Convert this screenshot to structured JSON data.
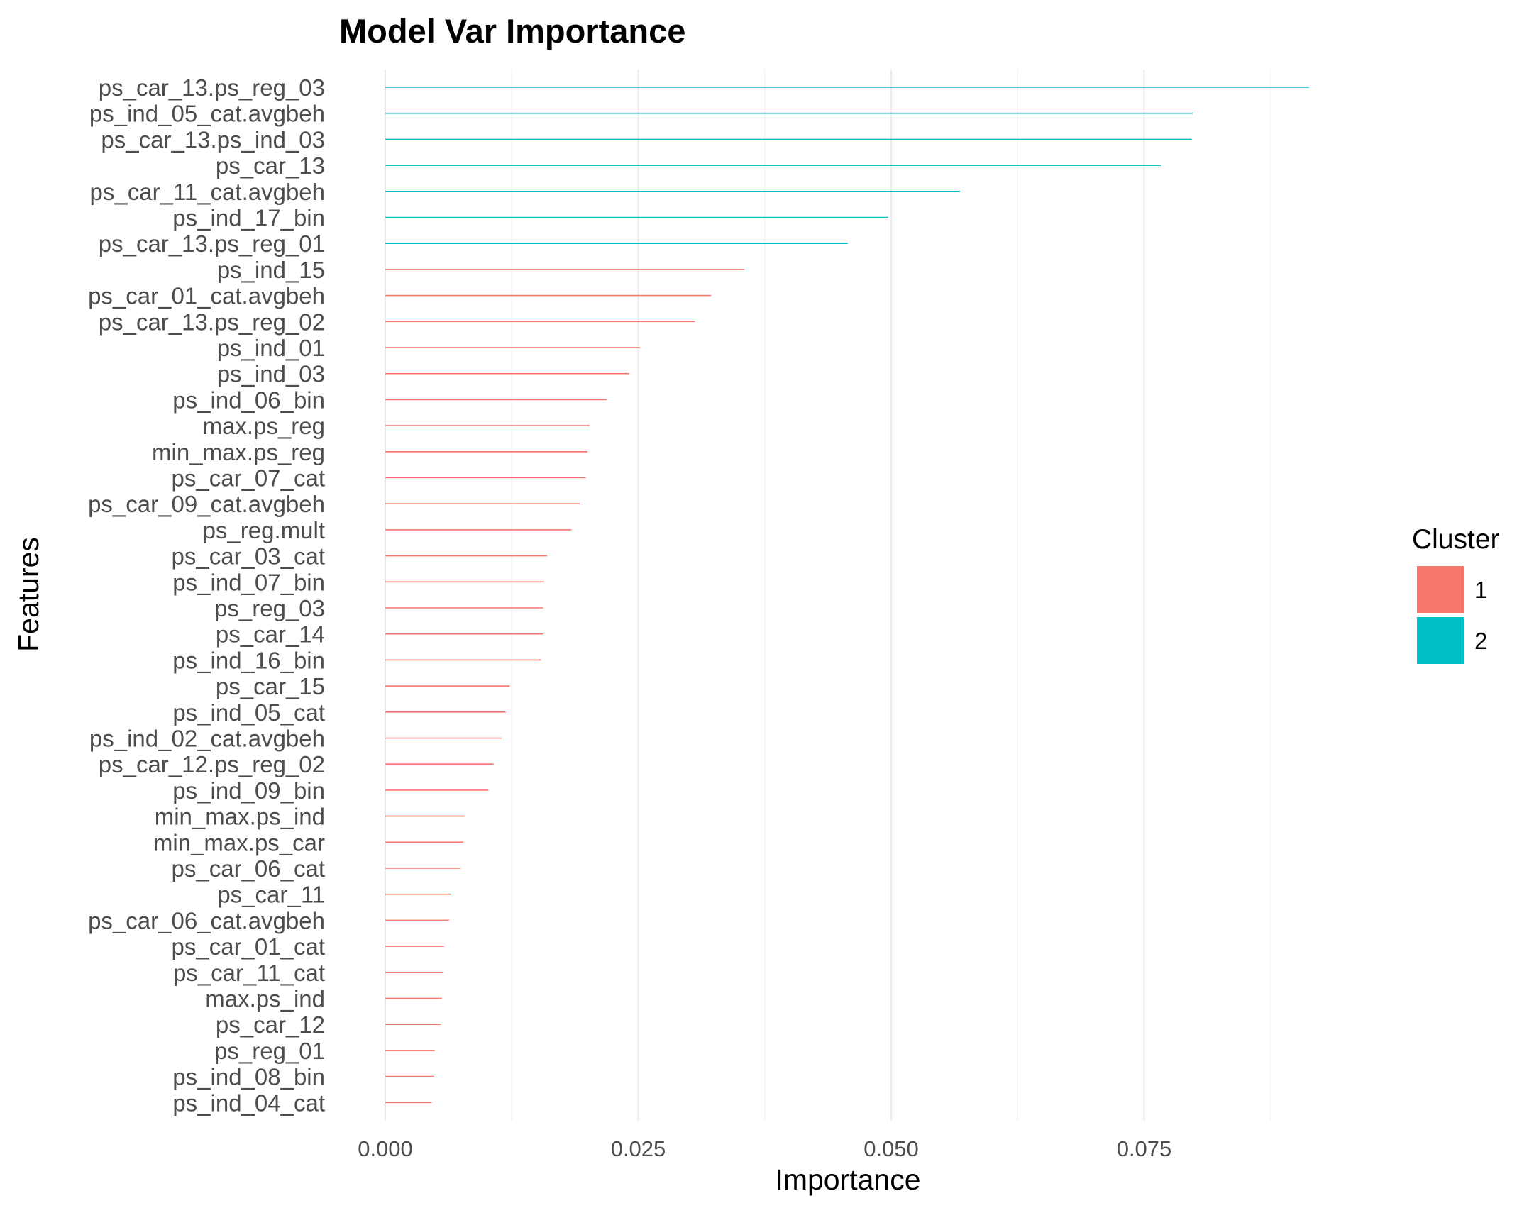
{
  "chart_data": {
    "type": "bar",
    "orientation": "horizontal",
    "title": "Model Var Importance",
    "xlabel": "Importance",
    "ylabel": "Features",
    "xlim": [
      0,
      0.0925
    ],
    "xticks": [
      0.0,
      0.025,
      0.05,
      0.075
    ],
    "xtick_labels": [
      "0.000",
      "0.025",
      "0.050",
      "0.075"
    ],
    "grid": true,
    "legend": {
      "title": "Cluster",
      "position": "right",
      "items": [
        {
          "label": "1",
          "color": "#F8766D"
        },
        {
          "label": "2",
          "color": "#00BFC4"
        }
      ]
    },
    "bars": [
      {
        "feature": "ps_car_13.ps_reg_03",
        "value": 0.0913,
        "cluster": "2"
      },
      {
        "feature": "ps_ind_05_cat.avgbeh",
        "value": 0.0798,
        "cluster": "2"
      },
      {
        "feature": "ps_car_13.ps_ind_03",
        "value": 0.0797,
        "cluster": "2"
      },
      {
        "feature": "ps_car_13",
        "value": 0.0767,
        "cluster": "2"
      },
      {
        "feature": "ps_car_11_cat.avgbeh",
        "value": 0.0568,
        "cluster": "2"
      },
      {
        "feature": "ps_ind_17_bin",
        "value": 0.0497,
        "cluster": "2"
      },
      {
        "feature": "ps_car_13.ps_reg_01",
        "value": 0.0457,
        "cluster": "2"
      },
      {
        "feature": "ps_ind_15",
        "value": 0.0355,
        "cluster": "1"
      },
      {
        "feature": "ps_car_01_cat.avgbeh",
        "value": 0.0322,
        "cluster": "1"
      },
      {
        "feature": "ps_car_13.ps_reg_02",
        "value": 0.0306,
        "cluster": "1"
      },
      {
        "feature": "ps_ind_01",
        "value": 0.0252,
        "cluster": "1"
      },
      {
        "feature": "ps_ind_03",
        "value": 0.0241,
        "cluster": "1"
      },
      {
        "feature": "ps_ind_06_bin",
        "value": 0.0219,
        "cluster": "1"
      },
      {
        "feature": "max.ps_reg",
        "value": 0.0202,
        "cluster": "1"
      },
      {
        "feature": "min_max.ps_reg",
        "value": 0.02,
        "cluster": "1"
      },
      {
        "feature": "ps_car_07_cat",
        "value": 0.0198,
        "cluster": "1"
      },
      {
        "feature": "ps_car_09_cat.avgbeh",
        "value": 0.0192,
        "cluster": "1"
      },
      {
        "feature": "ps_reg.mult",
        "value": 0.0184,
        "cluster": "1"
      },
      {
        "feature": "ps_car_03_cat",
        "value": 0.016,
        "cluster": "1"
      },
      {
        "feature": "ps_ind_07_bin",
        "value": 0.0157,
        "cluster": "1"
      },
      {
        "feature": "ps_reg_03",
        "value": 0.0156,
        "cluster": "1"
      },
      {
        "feature": "ps_car_14",
        "value": 0.0156,
        "cluster": "1"
      },
      {
        "feature": "ps_ind_16_bin",
        "value": 0.0154,
        "cluster": "1"
      },
      {
        "feature": "ps_car_15",
        "value": 0.0123,
        "cluster": "1"
      },
      {
        "feature": "ps_ind_05_cat",
        "value": 0.0119,
        "cluster": "1"
      },
      {
        "feature": "ps_ind_02_cat.avgbeh",
        "value": 0.0115,
        "cluster": "1"
      },
      {
        "feature": "ps_car_12.ps_reg_02",
        "value": 0.0107,
        "cluster": "1"
      },
      {
        "feature": "ps_ind_09_bin",
        "value": 0.0102,
        "cluster": "1"
      },
      {
        "feature": "min_max.ps_ind",
        "value": 0.0079,
        "cluster": "1"
      },
      {
        "feature": "min_max.ps_car",
        "value": 0.0077,
        "cluster": "1"
      },
      {
        "feature": "ps_car_06_cat",
        "value": 0.0074,
        "cluster": "1"
      },
      {
        "feature": "ps_car_11",
        "value": 0.0065,
        "cluster": "1"
      },
      {
        "feature": "ps_car_06_cat.avgbeh",
        "value": 0.0063,
        "cluster": "1"
      },
      {
        "feature": "ps_car_01_cat",
        "value": 0.0058,
        "cluster": "1"
      },
      {
        "feature": "ps_car_11_cat",
        "value": 0.0057,
        "cluster": "1"
      },
      {
        "feature": "max.ps_ind",
        "value": 0.0056,
        "cluster": "1"
      },
      {
        "feature": "ps_car_12",
        "value": 0.0055,
        "cluster": "1"
      },
      {
        "feature": "ps_reg_01",
        "value": 0.0049,
        "cluster": "1"
      },
      {
        "feature": "ps_ind_08_bin",
        "value": 0.0048,
        "cluster": "1"
      },
      {
        "feature": "ps_ind_04_cat",
        "value": 0.0046,
        "cluster": "1"
      }
    ]
  }
}
